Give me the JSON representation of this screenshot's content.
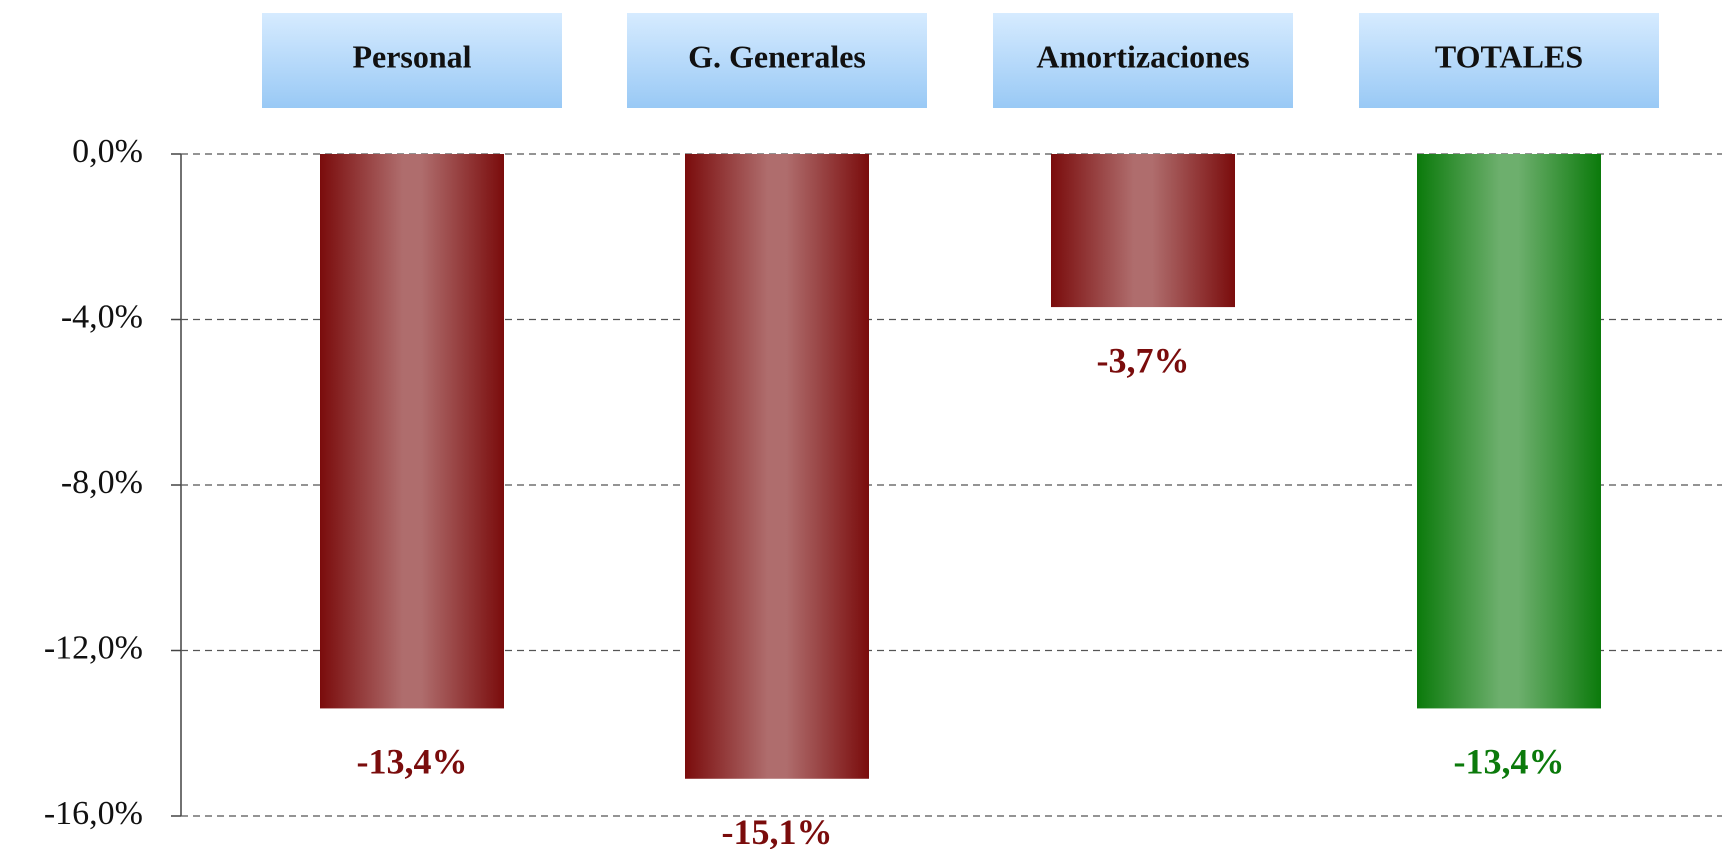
{
  "chart_data": {
    "type": "bar",
    "categories": [
      "Personal",
      "G. Generales",
      "Amortizaciones",
      "TOTALES"
    ],
    "values": [
      -13.4,
      -15.1,
      -3.7,
      -13.4
    ],
    "value_labels": [
      "-13,4%",
      "-15,1%",
      "-3,7%",
      "-13,4%"
    ],
    "colors": [
      "#7a0c0c",
      "#7a0c0c",
      "#7a0c0c",
      "#0b7a0b"
    ],
    "ylim": [
      -16,
      0
    ],
    "yticks": [
      {
        "value": 0,
        "label": "0,0%"
      },
      {
        "value": -4,
        "label": "-4,0%"
      },
      {
        "value": -8,
        "label": "-8,0%"
      },
      {
        "value": -12,
        "label": "-12,0%"
      },
      {
        "value": -16,
        "label": "-16,0%"
      }
    ],
    "grid": true
  }
}
